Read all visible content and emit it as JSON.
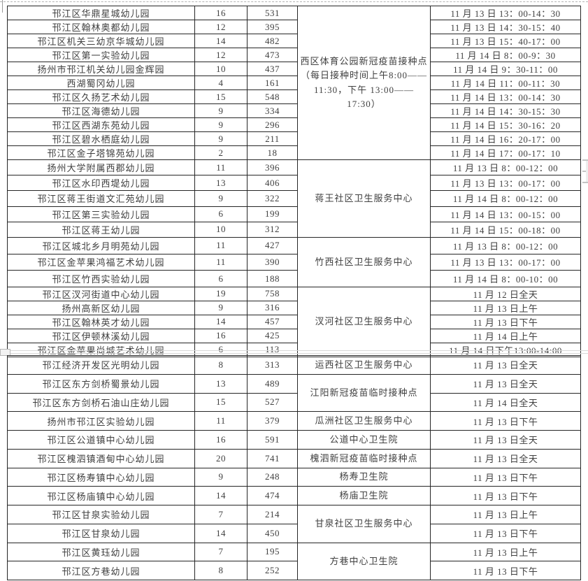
{
  "meta": {
    "background": "#ffffff",
    "border_color": "#262626",
    "text_color": "#404040",
    "artifact_gray": "#d9d9d9"
  },
  "table1": {
    "sites": [
      {
        "label": "西区体育公园新冠疫苗接种点（每日接种时间上午8:00——11:30，下午 13:00——17:30）",
        "rows": 11
      },
      {
        "label": "蒋王社区卫生服务中心",
        "rows": 5
      },
      {
        "label": "竹西社区卫生服务中心",
        "rows": 3
      },
      {
        "label": "汊河社区卫生服务中心",
        "rows": 5
      }
    ],
    "rows": [
      {
        "name": "邗江区华鼎星城幼儿园",
        "count": "16",
        "total": "531",
        "schedule": "11 月 13 日 13：00-14：30"
      },
      {
        "name": "邗江区翰林奥都幼儿园",
        "count": "12",
        "total": "395",
        "schedule": "11 月 13 日 14：30-15：40"
      },
      {
        "name": "邗江区机关三幼京华城幼儿园",
        "count": "14",
        "total": "482",
        "schedule": "11 月 13 日 15：40-17：00"
      },
      {
        "name": "邗江区第一实验幼儿园",
        "count": "12",
        "total": "473",
        "schedule": "11 月 14 日 8：00-9：30"
      },
      {
        "name": "扬州市邗江机关幼儿园金辉园",
        "count": "10",
        "total": "437",
        "schedule": "11 月 14 日 9：30-11：00"
      },
      {
        "name": "西湖蜀冈幼儿园",
        "count": "4",
        "total": "161",
        "schedule": "11 月 14 日 11：00-11：30"
      },
      {
        "name": "邗江区久扬艺术幼儿园",
        "count": "15",
        "total": "548",
        "schedule": "11 月 14 日 13：00-14：30"
      },
      {
        "name": "邗江区海德幼儿园",
        "count": "9",
        "total": "334",
        "schedule": "11 月 14 日 14：30-15：30"
      },
      {
        "name": "邗江区西湖东苑幼儿园",
        "count": "9",
        "total": "296",
        "schedule": "11 月 14 日 15：30-16：20"
      },
      {
        "name": "邗江区碧水栖庭幼儿园",
        "count": "9",
        "total": "211",
        "schedule": "11 月 14 日 16：20-17：00"
      },
      {
        "name": "邗江区金子塔锦苑幼儿园",
        "count": "2",
        "total": "18",
        "schedule": "11 月 14 日 17：00-17：10"
      },
      {
        "name": "扬州大学附属西郡幼儿园",
        "count": "11",
        "total": "396",
        "schedule": "11 月 13 日 8：00-12：00"
      },
      {
        "name": "邗江区水印西堤幼儿园",
        "count": "13",
        "total": "406",
        "schedule": "11 月 13 日 13：00-17：00"
      },
      {
        "name": "邗江区蒋王街道文汇苑幼儿园",
        "count": "9",
        "total": "322",
        "schedule": "11 月 14 日 8：00-12：00"
      },
      {
        "name": "邗江区第三实验幼儿园",
        "count": "6",
        "total": "199",
        "schedule": "11 月 14 日 13：00-15：00"
      },
      {
        "name": "邗江区蒋王幼儿园",
        "count": "10",
        "total": "312",
        "schedule": "11 月 14 日 15：00-18：00"
      },
      {
        "name": "邗江区城北乡月明苑幼儿园",
        "count": "11",
        "total": "427",
        "schedule": "11 月 13 日 8：00-12：00"
      },
      {
        "name": "邗江区金苹果鸿福艺术幼儿园",
        "count": "11",
        "total": "390",
        "schedule": "11 月 13 日 13：00-17：00"
      },
      {
        "name": "邗江区竹西实验幼儿园",
        "count": "6",
        "total": "188",
        "schedule": "11 月 14 日 8：00-10：00"
      },
      {
        "name": "邗江区汊河街道中心幼儿园",
        "count": "19",
        "total": "758",
        "schedule": "11 月 12 日全天"
      },
      {
        "name": "扬州高新区幼儿园",
        "count": "9",
        "total": "316",
        "schedule": "11 月 13 日上午"
      },
      {
        "name": "邗江区翰林英才幼儿园",
        "count": "14",
        "total": "457",
        "schedule": "11 月 13 日下午"
      },
      {
        "name": "邗江区伊顿林溪幼儿园",
        "count": "16",
        "total": "425",
        "schedule": "11 月 14 日上午"
      },
      {
        "name": "邗江区金苹果尚城艺术幼儿园",
        "count": "6",
        "total": "113",
        "schedule": "11 月 14 日下午13:00-14:00"
      }
    ]
  },
  "table2": {
    "sites": [
      {
        "label": "运西社区卫生服务中心",
        "rows": 1
      },
      {
        "label": "江阳新冠疫苗临时接种点",
        "rows": 2
      },
      {
        "label": "瓜洲社区卫生服务中心",
        "rows": 1
      },
      {
        "label": "公道中心卫生院",
        "rows": 1
      },
      {
        "label": "槐泗新冠疫苗临时接种点",
        "rows": 1
      },
      {
        "label": "杨寿卫生院",
        "rows": 1
      },
      {
        "label": "杨庙卫生院",
        "rows": 1
      },
      {
        "label": "甘泉社区卫生服务中心",
        "rows": 2
      },
      {
        "label": "方巷中心卫生院",
        "rows": 2
      }
    ],
    "rows": [
      {
        "name": "邗江经济开发区光明幼儿园",
        "count": "8",
        "total": "313",
        "schedule": "11 月 13 日全天"
      },
      {
        "name": "邗江区东方剑桥蜀景幼儿园",
        "count": "13",
        "total": "489",
        "schedule": "11 月 13 日全天"
      },
      {
        "name": "邗江区东方剑桥石油山庄幼儿园",
        "count": "15",
        "total": "527",
        "schedule": "11 月 14 日全天"
      },
      {
        "name": "扬州市邗江区实验幼儿园",
        "count": "11",
        "total": "379",
        "schedule": "11 月 13 日下午"
      },
      {
        "name": "邗江区公道镇中心幼儿园",
        "count": "16",
        "total": "591",
        "schedule": "11 月 13 日全天"
      },
      {
        "name": "邗江区槐泗镇酒甸中心幼儿园",
        "count": "20",
        "total": "741",
        "schedule": "11 月 13 日全天"
      },
      {
        "name": "邗江区杨寿镇中心幼儿园",
        "count": "9",
        "total": "248",
        "schedule": "11 月 13 日下午"
      },
      {
        "name": "邗江区杨庙镇中心幼儿园",
        "count": "14",
        "total": "474",
        "schedule": "11 月 13 日下午"
      },
      {
        "name": "邗江区甘泉实验幼儿园",
        "count": "7",
        "total": "214",
        "schedule": "11 月 13 日上午"
      },
      {
        "name": "邗江区甘泉幼儿园",
        "count": "14",
        "total": "450",
        "schedule": "11 月 13 日下午"
      },
      {
        "name": "邗江区黄珏幼儿园",
        "count": "7",
        "total": "195",
        "schedule": "11 月 13 日上午"
      },
      {
        "name": "邗江区方巷幼儿园",
        "count": "8",
        "total": "252",
        "schedule": "11 月 13 日下午"
      }
    ]
  }
}
